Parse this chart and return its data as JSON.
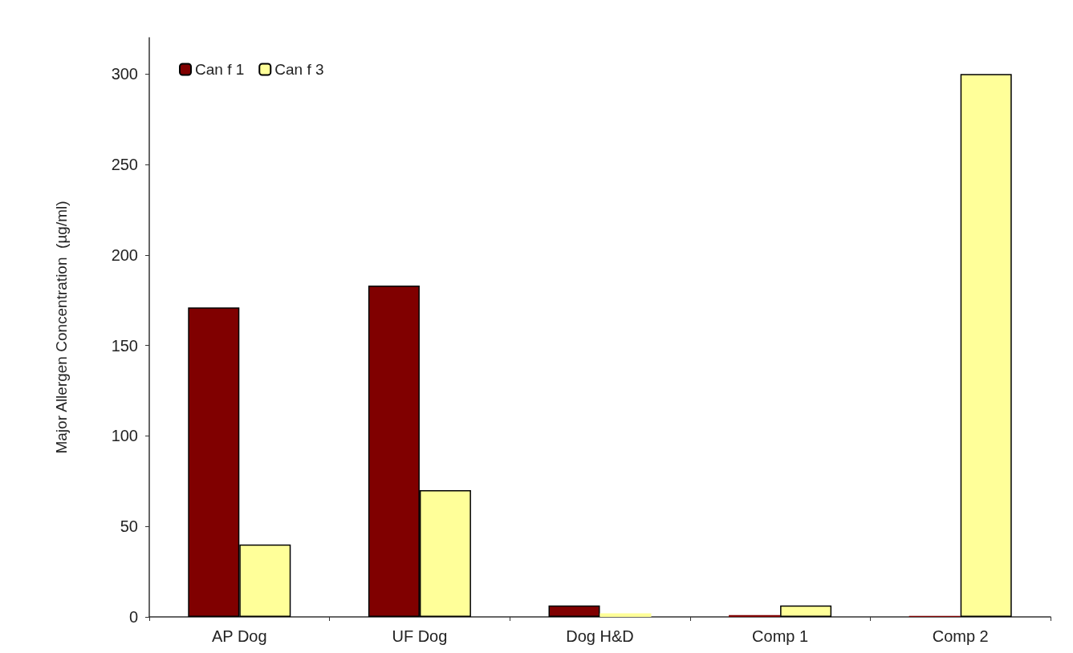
{
  "chart_data": {
    "type": "bar",
    "ylabel": "Major Allergen Concentration  (µg/ml)",
    "categories": [
      "AP Dog",
      "UF Dog",
      "Dog H&D",
      "Comp 1",
      "Comp 2"
    ],
    "series": [
      {
        "name": "Can f 1",
        "color": "#800000",
        "values": [
          171,
          183,
          6.3,
          1,
          0.5
        ]
      },
      {
        "name": "Can f 3",
        "color": "#ffff99",
        "values": [
          40,
          70,
          2,
          6.3,
          300
        ]
      }
    ],
    "ylim": [
      0,
      320
    ],
    "yticks": [
      0,
      50,
      100,
      150,
      200,
      250,
      300
    ],
    "grid": false,
    "legend": "top left"
  }
}
